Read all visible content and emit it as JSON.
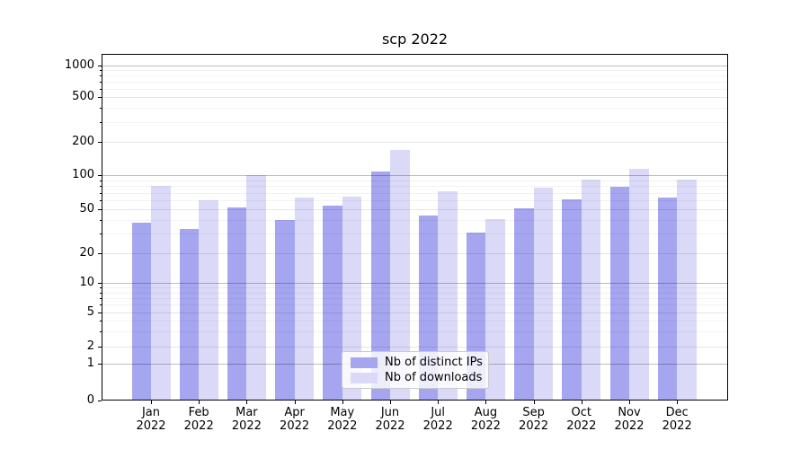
{
  "chart_data": {
    "type": "bar",
    "title": "scp 2022",
    "months": [
      "Jan",
      "Feb",
      "Mar",
      "Apr",
      "May",
      "Jun",
      "Jul",
      "Aug",
      "Sep",
      "Oct",
      "Nov",
      "Dec"
    ],
    "year": "2022",
    "series": [
      {
        "name": "Nb of distinct IPs",
        "color": "#a5a5f0",
        "values": [
          38,
          33,
          52,
          40,
          54,
          108,
          44,
          31,
          51,
          61,
          79,
          63
        ]
      },
      {
        "name": "Nb of downloads",
        "color": "#dadaf8",
        "values": [
          80,
          60,
          100,
          63,
          65,
          170,
          72,
          41,
          77,
          92,
          115,
          92
        ]
      }
    ],
    "yticks": [
      0,
      1,
      2,
      5,
      10,
      20,
      50,
      100,
      200,
      500,
      1000
    ],
    "xlabel": "",
    "ylabel": "",
    "yscale": "symlog",
    "ylim": [
      0,
      1300
    ],
    "grid": true,
    "legend_position": "lower center",
    "background": "#ffffff",
    "axis_color": "#000000"
  }
}
